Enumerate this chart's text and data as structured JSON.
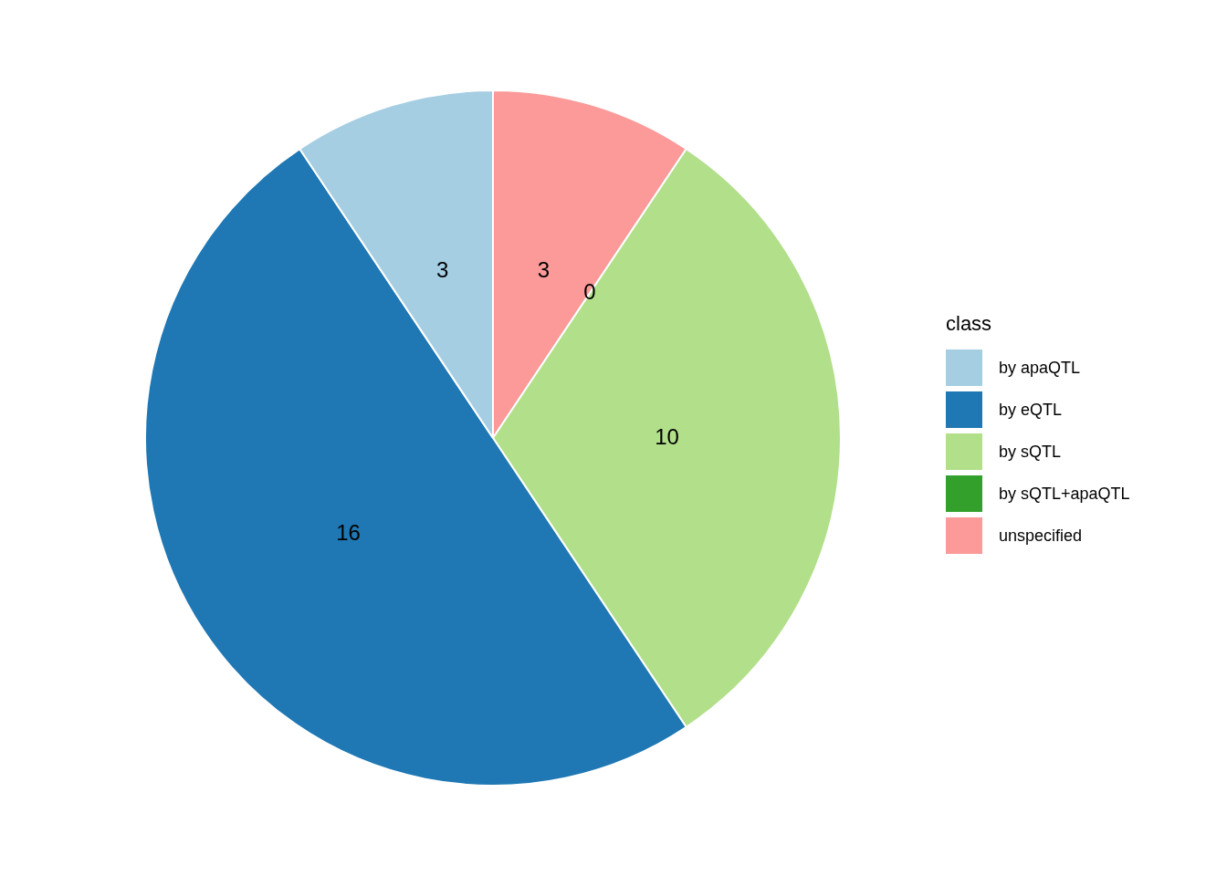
{
  "chart_data": {
    "type": "pie",
    "legend_title": "class",
    "legend": "right",
    "value_labels": [
      "3",
      "16",
      "10",
      "0",
      "3"
    ],
    "categories": [
      "by apaQTL",
      "by eQTL",
      "by sQTL",
      "by sQTL+apaQTL",
      "unspecified"
    ],
    "values": [
      3,
      16,
      10,
      0,
      3
    ],
    "colors": [
      "#a6cee3",
      "#1f78b4",
      "#b2df8a",
      "#33a02c",
      "#fb9a99"
    ]
  }
}
